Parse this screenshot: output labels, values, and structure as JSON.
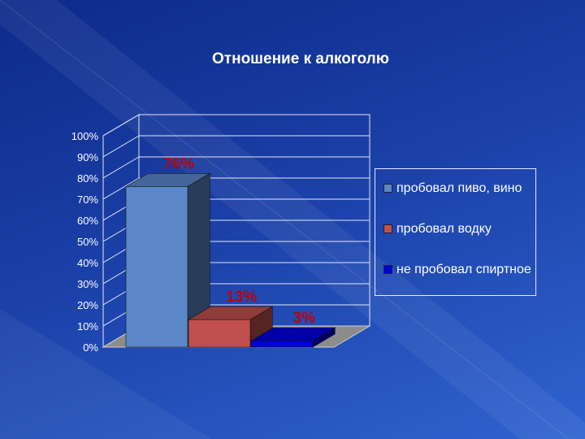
{
  "chart_data": {
    "type": "bar",
    "title": "Отношение к алкоголю",
    "categories": [
      "пробовал пиво, вино",
      "пробовал водку",
      "не пробовал спиртное"
    ],
    "values": [
      76,
      13,
      3
    ],
    "data_labels": [
      "76%",
      "13%",
      "3%"
    ],
    "colors": [
      "#5b87c9",
      "#c0504d",
      "#0000dd"
    ],
    "ylim": [
      0,
      100
    ],
    "y_ticks": [
      "0%",
      "10%",
      "20%",
      "30%",
      "40%",
      "50%",
      "60%",
      "70%",
      "80%",
      "90%",
      "100%"
    ],
    "legend": [
      "пробовал пиво, вино",
      "пробовал водку",
      "не пробовал спиртное"
    ],
    "legend_position": "right",
    "grid": true,
    "style": "3d-column"
  }
}
